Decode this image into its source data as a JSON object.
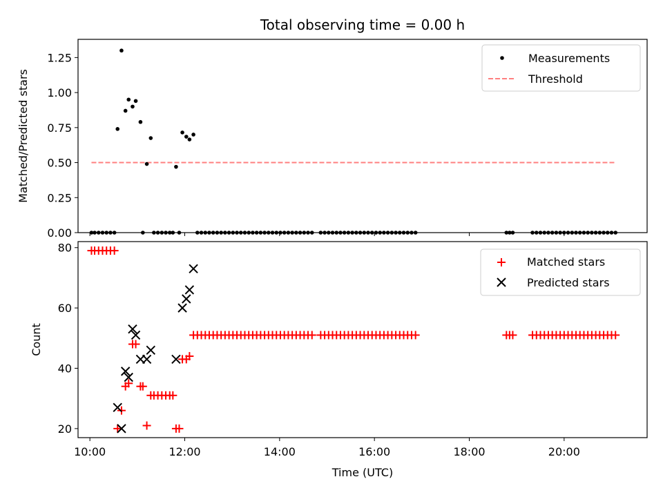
{
  "chart_data": [
    {
      "type": "scatter",
      "title": "Total observing time = 0.00 h",
      "xlabel": "",
      "ylabel": "Matched/Predicted stars",
      "xlim": [
        "09:45",
        "21:45"
      ],
      "ylim": [
        0,
        1.38
      ],
      "yticks": [
        0.0,
        0.25,
        0.5,
        0.75,
        1.0,
        1.25
      ],
      "ytick_labels": [
        "0.00",
        "0.25",
        "0.50",
        "0.75",
        "1.00",
        "1.25"
      ],
      "grid": false,
      "legend_position": "upper right",
      "series": [
        {
          "name": "Measurements",
          "marker": "dot",
          "color": "#000000",
          "points": [
            [
              "10:02",
              0
            ],
            [
              "10:06",
              0
            ],
            [
              "10:11",
              0
            ],
            [
              "10:16",
              0
            ],
            [
              "10:21",
              0
            ],
            [
              "10:26",
              0
            ],
            [
              "10:31",
              0
            ],
            [
              "10:35",
              0.74
            ],
            [
              "10:40",
              1.3
            ],
            [
              "10:45",
              0.87
            ],
            [
              "10:49",
              0.95
            ],
            [
              "10:54",
              0.9
            ],
            [
              "10:58",
              0.94
            ],
            [
              "11:04",
              0.79
            ],
            [
              "11:07",
              0
            ],
            [
              "11:12",
              0.49
            ],
            [
              "11:17",
              0.675
            ],
            [
              "11:21",
              0
            ],
            [
              "11:26",
              0
            ],
            [
              "11:31",
              0
            ],
            [
              "11:36",
              0
            ],
            [
              "11:41",
              0
            ],
            [
              "11:45",
              0
            ],
            [
              "11:49",
              0.47
            ],
            [
              "11:53",
              0
            ],
            [
              "11:57",
              0.715
            ],
            [
              "12:02",
              0.685
            ],
            [
              "12:06",
              0.665
            ],
            [
              "12:11",
              0.7
            ]
          ],
          "constant_series": [
            {
              "y": 0,
              "from": "12:16",
              "to": "14:45",
              "step_minutes": 5
            },
            {
              "y": 0,
              "from": "14:52",
              "to": "16:53",
              "step_minutes": 5
            },
            {
              "y": 0,
              "from": "18:47",
              "to": "18:56",
              "step_minutes": 4
            },
            {
              "y": 0,
              "from": "19:20",
              "to": "21:06",
              "step_minutes": 5
            }
          ]
        },
        {
          "name": "Threshold",
          "type": "line",
          "style": "dashed",
          "color": "#ff7f7f",
          "points": [
            [
              "10:02",
              0.5
            ],
            [
              "21:06",
              0.5
            ]
          ]
        }
      ]
    },
    {
      "type": "scatter",
      "title": "",
      "xlabel": "Time (UTC)",
      "ylabel": "Count",
      "xlim": [
        "09:45",
        "21:45"
      ],
      "xticks": [
        "10:00",
        "12:00",
        "14:00",
        "16:00",
        "18:00",
        "20:00"
      ],
      "ylim": [
        17,
        82
      ],
      "yticks": [
        20,
        40,
        60,
        80
      ],
      "grid": false,
      "legend_position": "upper right",
      "series": [
        {
          "name": "Matched stars",
          "marker": "plus",
          "color": "#ff0000",
          "points": [
            [
              "10:02",
              79
            ],
            [
              "10:06",
              79
            ],
            [
              "10:11",
              79
            ],
            [
              "10:16",
              79
            ],
            [
              "10:21",
              79
            ],
            [
              "10:26",
              79
            ],
            [
              "10:31",
              79
            ],
            [
              "10:35",
              20
            ],
            [
              "10:40",
              26
            ],
            [
              "10:45",
              34
            ],
            [
              "10:49",
              35
            ],
            [
              "10:54",
              48
            ],
            [
              "10:58",
              48
            ],
            [
              "11:04",
              34
            ],
            [
              "11:07",
              34
            ],
            [
              "11:12",
              21
            ],
            [
              "11:17",
              31
            ],
            [
              "11:21",
              31
            ],
            [
              "11:26",
              31
            ],
            [
              "11:31",
              31
            ],
            [
              "11:36",
              31
            ],
            [
              "11:41",
              31
            ],
            [
              "11:45",
              31
            ],
            [
              "11:49",
              20
            ],
            [
              "11:53",
              20
            ],
            [
              "11:57",
              43
            ],
            [
              "12:02",
              43
            ],
            [
              "12:06",
              44
            ],
            [
              "12:11",
              51
            ]
          ],
          "constant_series": [
            {
              "y": 51,
              "from": "12:16",
              "to": "14:45",
              "step_minutes": 5
            },
            {
              "y": 51,
              "from": "14:52",
              "to": "16:53",
              "step_minutes": 5
            },
            {
              "y": 51,
              "from": "18:47",
              "to": "18:56",
              "step_minutes": 4
            },
            {
              "y": 51,
              "from": "19:20",
              "to": "21:06",
              "step_minutes": 5
            }
          ]
        },
        {
          "name": "Predicted stars",
          "marker": "x",
          "color": "#000000",
          "points": [
            [
              "10:35",
              27
            ],
            [
              "10:40",
              20
            ],
            [
              "10:45",
              39
            ],
            [
              "10:49",
              37
            ],
            [
              "10:54",
              53
            ],
            [
              "10:58",
              51
            ],
            [
              "11:04",
              43
            ],
            [
              "11:12",
              43
            ],
            [
              "11:17",
              46
            ],
            [
              "11:49",
              43
            ],
            [
              "11:57",
              60
            ],
            [
              "12:02",
              63
            ],
            [
              "12:06",
              66
            ],
            [
              "12:11",
              73
            ]
          ]
        }
      ]
    }
  ]
}
